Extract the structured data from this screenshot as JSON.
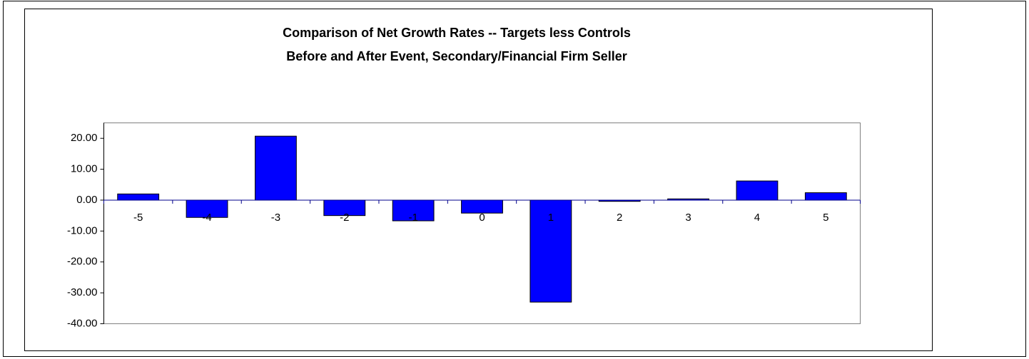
{
  "chart_data": {
    "type": "bar",
    "title": [
      "Comparison of Net Growth Rates -- Targets less Controls",
      "Before and After Event, Secondary/Financial Firm Seller"
    ],
    "categories": [
      "-5",
      "-4",
      "-3",
      "-2",
      "-1",
      "0",
      "1",
      "2",
      "3",
      "4",
      "5"
    ],
    "values": [
      2.0,
      -5.6,
      20.7,
      -5.0,
      -6.7,
      -4.2,
      -33.0,
      -0.4,
      0.4,
      6.2,
      2.4
    ],
    "color": "#0000ff",
    "ylim": [
      -40,
      25
    ],
    "yticks": [
      {
        "value": -40,
        "label": "-40.00"
      },
      {
        "value": -30,
        "label": "-30.00"
      },
      {
        "value": -20,
        "label": "-20.00"
      },
      {
        "value": -10,
        "label": "-10.00"
      },
      {
        "value": 0,
        "label": "0.00"
      },
      {
        "value": 10,
        "label": "10.00"
      },
      {
        "value": 20,
        "label": "20.00"
      }
    ],
    "grid": false
  }
}
